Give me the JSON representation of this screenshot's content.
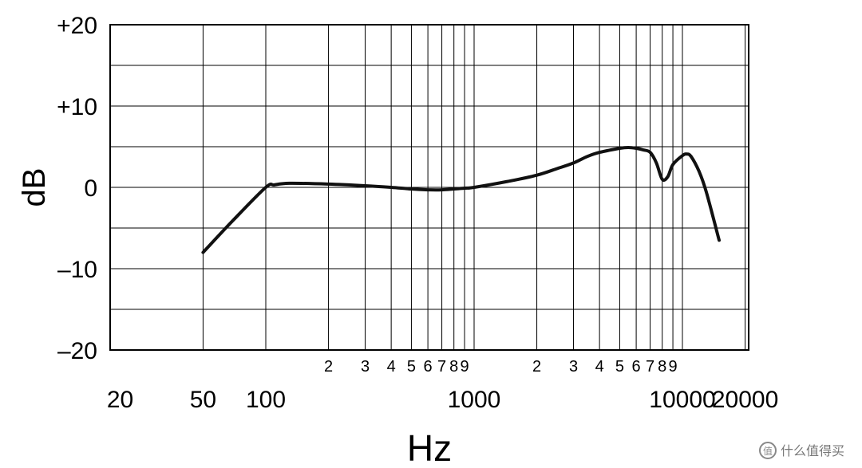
{
  "chart_data": {
    "type": "line",
    "title": "",
    "xlabel": "Hz",
    "ylabel": "dB",
    "x_scale": "log",
    "xlim": [
      50,
      20000
    ],
    "ylim": [
      -20,
      20
    ],
    "grid": true,
    "y_ticks": [
      {
        "value": 20,
        "label": "+20"
      },
      {
        "value": 10,
        "label": "+10"
      },
      {
        "value": 0,
        "label": "0"
      },
      {
        "value": -10,
        "label": "–10"
      },
      {
        "value": -20,
        "label": "–20"
      }
    ],
    "y_gridlines": [
      20,
      15,
      10,
      5,
      0,
      -5,
      -10,
      -15,
      -20
    ],
    "x_gridlines": [
      50,
      100,
      200,
      300,
      400,
      500,
      600,
      700,
      800,
      900,
      1000,
      2000,
      3000,
      4000,
      5000,
      6000,
      7000,
      8000,
      9000,
      10000,
      20000
    ],
    "x_major_labels": [
      {
        "value": 20,
        "label": "20"
      },
      {
        "value": 50,
        "label": "50"
      },
      {
        "value": 100,
        "label": "100"
      },
      {
        "value": 1000,
        "label": "1000"
      },
      {
        "value": 10000,
        "label": "10000"
      },
      {
        "value": 20000,
        "label": "20000"
      }
    ],
    "x_minor_labels": [
      {
        "value": 200,
        "label": "2"
      },
      {
        "value": 300,
        "label": "3"
      },
      {
        "value": 400,
        "label": "4"
      },
      {
        "value": 500,
        "label": "5"
      },
      {
        "value": 600,
        "label": "6"
      },
      {
        "value": 700,
        "label": "7"
      },
      {
        "value": 800,
        "label": "8"
      },
      {
        "value": 900,
        "label": "9"
      },
      {
        "value": 2000,
        "label": "2"
      },
      {
        "value": 3000,
        "label": "3"
      },
      {
        "value": 4000,
        "label": "4"
      },
      {
        "value": 5000,
        "label": "5"
      },
      {
        "value": 6000,
        "label": "6"
      },
      {
        "value": 7000,
        "label": "7"
      },
      {
        "value": 8000,
        "label": "8"
      },
      {
        "value": 9000,
        "label": "9"
      }
    ],
    "series": [
      {
        "x": [
          50,
          70,
          100,
          110,
          130,
          200,
          300,
          400,
          500,
          600,
          700,
          900,
          1000,
          1500,
          2000,
          2500,
          3000,
          3500,
          4000,
          5000,
          5500,
          6000,
          6500,
          7000,
          7500,
          8000,
          8500,
          9000,
          10000,
          10500,
          11000,
          12000,
          13000,
          15000
        ],
        "y": [
          -8,
          -4,
          0,
          0.3,
          0.5,
          0.4,
          0.2,
          0,
          -0.2,
          -0.3,
          -0.3,
          -0.1,
          0,
          0.8,
          1.5,
          2.3,
          3.0,
          3.8,
          4.3,
          4.8,
          4.9,
          4.8,
          4.6,
          4.3,
          3.0,
          1.0,
          1.3,
          2.8,
          3.9,
          4.1,
          3.8,
          2.0,
          -0.5,
          -6.5
        ]
      }
    ]
  },
  "watermark": "什么值得买"
}
